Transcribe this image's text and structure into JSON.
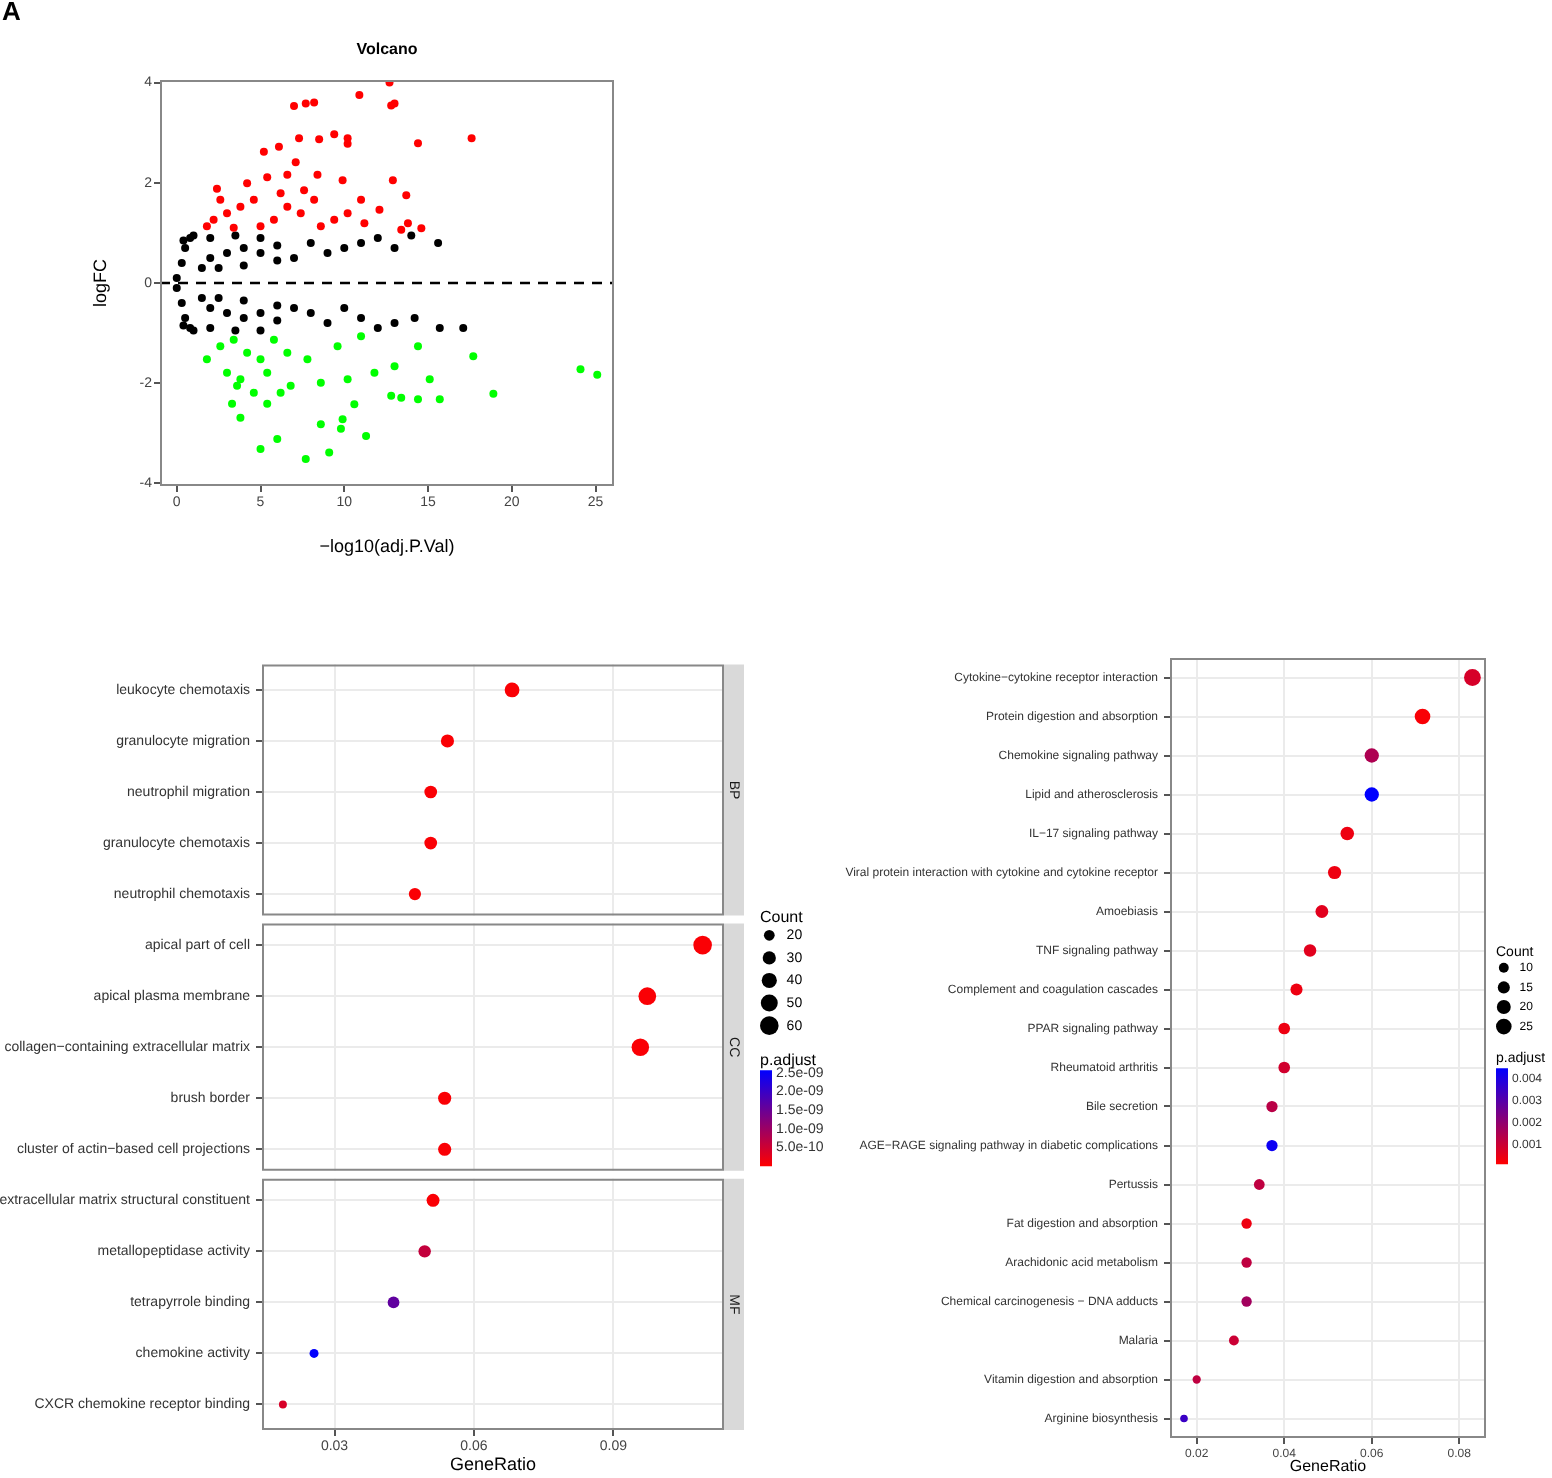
{
  "chart_data": [
    {
      "type": "scatter",
      "title": "Volcano",
      "xlabel": "−log10(adj.P.Val)",
      "ylabel": "logFC",
      "annotations": [
        "A"
      ],
      "xlim": [
        -1,
        26.1
      ],
      "ylim": [
        -4.05,
        4.05
      ],
      "xticks": [
        0,
        5,
        10,
        15,
        20,
        25
      ],
      "yticks": [
        -4,
        -2,
        0,
        2,
        4
      ],
      "grid": false,
      "marker": "circle",
      "ref_lines": [
        {
          "axis": "y",
          "value": 0,
          "color": "#000000",
          "line_style": "dashed"
        }
      ],
      "series": [
        {
          "color": "#ff0000",
          "x": [
            12.7,
            10.9,
            7.0,
            7.7,
            8.2,
            12.8,
            13.0,
            17.6,
            14.4,
            9.4,
            10.2,
            8.5,
            7.3,
            10.2,
            6.1,
            5.2,
            7.1,
            12.9,
            13.7,
            8.4,
            9.9,
            4.2,
            2.4,
            5.4,
            6.6,
            11.0,
            12.1,
            13.8,
            14.6,
            13.4,
            2.2,
            3.0,
            3.8,
            4.6,
            5.8,
            6.6,
            7.4,
            8.2,
            5.0,
            3.4,
            1.8,
            9.4,
            10.2,
            11.2,
            8.6,
            6.2,
            7.6,
            2.6
          ],
          "values": [
            4.0,
            3.75,
            3.53,
            3.58,
            3.6,
            3.54,
            3.58,
            2.89,
            2.79,
            2.97,
            2.89,
            2.87,
            2.89,
            2.78,
            2.72,
            2.62,
            2.41,
            2.05,
            1.75,
            2.16,
            2.05,
            1.99,
            1.88,
            2.11,
            2.16,
            1.66,
            1.46,
            1.19,
            1.09,
            1.06,
            1.26,
            1.39,
            1.52,
            1.66,
            1.26,
            1.52,
            1.39,
            1.66,
            1.13,
            1.1,
            1.13,
            1.26,
            1.39,
            1.19,
            1.13,
            1.79,
            1.85,
            1.66
          ]
        },
        {
          "color": "#000000",
          "x": [
            0,
            0,
            0.3,
            0.3,
            0.5,
            0.5,
            0.8,
            0.8,
            1,
            1,
            2,
            2,
            3,
            3,
            4,
            4,
            5,
            5,
            6,
            6,
            7,
            7,
            8,
            8,
            9,
            9,
            10,
            10,
            11,
            11,
            12,
            12,
            13,
            13,
            14,
            14.2,
            15.6,
            15.7,
            17.1,
            2,
            2,
            3.5,
            3.5,
            5,
            5,
            1.5,
            1.5,
            2.5,
            2.5,
            4,
            4,
            6,
            6,
            0.4,
            0.4
          ],
          "values": [
            0.1,
            -0.1,
            0.4,
            -0.4,
            0.7,
            -0.7,
            0.9,
            -0.9,
            0.95,
            -0.95,
            0.5,
            -0.5,
            0.6,
            -0.6,
            0.7,
            -0.7,
            0.6,
            -0.6,
            0.75,
            -0.75,
            0.5,
            -0.5,
            0.8,
            -0.6,
            0.6,
            -0.8,
            0.7,
            -0.5,
            0.8,
            -0.7,
            0.9,
            -0.9,
            0.7,
            -0.8,
            0.95,
            -0.7,
            0.8,
            -0.9,
            -0.9,
            0.9,
            -0.9,
            0.95,
            -0.95,
            0.9,
            -0.95,
            0.3,
            -0.3,
            0.3,
            -0.3,
            0.35,
            -0.35,
            0.45,
            -0.45,
            0.85,
            -0.85
          ]
        },
        {
          "color": "#00ff00",
          "x": [
            24.1,
            25.1,
            18.9,
            17.7,
            15.7,
            15.1,
            14.4,
            13.4,
            12.8,
            11.3,
            10.6,
            10.2,
            9.8,
            9.9,
            9.1,
            8.6,
            7.7,
            6.0,
            5.0,
            3.8,
            5.4,
            3.3,
            3.6,
            4.6,
            6.2,
            8.6,
            11.8,
            13.0,
            14.4,
            7.8,
            11.0,
            9.6,
            1.8,
            2.6,
            3.4,
            4.2,
            5.0,
            5.8,
            6.6,
            3.0,
            5.4,
            3.8,
            6.8
          ],
          "values": [
            -1.72,
            -1.83,
            -2.21,
            -1.46,
            -2.32,
            -1.92,
            -2.32,
            -2.29,
            -2.25,
            -3.05,
            -2.42,
            -1.92,
            -2.91,
            -2.72,
            -3.38,
            -2.82,
            -3.51,
            -3.11,
            -3.31,
            -2.69,
            -2.41,
            -2.41,
            -2.05,
            -2.19,
            -2.19,
            -1.99,
            -1.79,
            -1.66,
            -1.26,
            -1.52,
            -1.06,
            -1.26,
            -1.52,
            -1.26,
            -1.13,
            -1.39,
            -1.52,
            -1.13,
            -1.39,
            -1.79,
            -1.79,
            -1.92,
            -2.05
          ]
        }
      ]
    },
    {
      "type": "bubble",
      "orientation": "horizontal",
      "xlabel": "GeneRatio",
      "categories": [
        "leukocyte chemotaxis",
        "granulocyte migration",
        "neutrophil migration",
        "granulocyte chemotaxis",
        "neutrophil chemotaxis",
        "apical part of cell",
        "apical plasma membrane",
        "collagen−containing extracellular matrix",
        "brush border",
        "cluster of actin−based cell projections",
        "extracellular matrix structural constituent",
        "metallopeptidase activity",
        "tetrapyrrole binding",
        "chemokine activity",
        "CXCR chemokine receptor binding"
      ],
      "values": [
        0.0682,
        0.0543,
        0.0507,
        0.0507,
        0.0473,
        0.1092,
        0.0973,
        0.0958,
        0.0537,
        0.0537,
        0.0512,
        0.0494,
        0.0427,
        0.0256,
        0.0189
      ],
      "sizes": [
        38,
        30,
        28,
        28,
        26,
        60,
        54,
        53,
        30,
        30,
        29,
        27,
        24,
        14,
        11
      ],
      "cvalues": [
        5e-11,
        5e-11,
        5e-11,
        5e-11,
        5e-11,
        5e-11,
        5e-11,
        5e-11,
        5e-11,
        5e-11,
        5e-11,
        6e-10,
        1.6e-09,
        2.55e-09,
        4e-10
      ],
      "xlim": [
        0.0144,
        0.1138
      ],
      "xticks": [
        0.03,
        0.06,
        0.09
      ],
      "grid": true,
      "annotations": [
        "BP",
        "CC",
        "MF"
      ],
      "legend_title": "Count",
      "size_legend": [
        20,
        30,
        40,
        50,
        60
      ],
      "clabel": "p.adjust",
      "clim": [
        0,
        2.57e-09
      ],
      "cticks": [
        {
          "value": 5e-10,
          "label": "5.0e-10"
        },
        {
          "value": 1e-09,
          "label": "1.0e-09"
        },
        {
          "value": 1.5e-09,
          "label": "1.5e-09"
        },
        {
          "value": 2e-09,
          "label": "2.0e-09"
        },
        {
          "value": 2.5e-09,
          "label": "2.5e-09"
        }
      ]
    },
    {
      "type": "bubble",
      "orientation": "horizontal",
      "xlabel": "GeneRatio",
      "categories": [
        "Cytokine−cytokine receptor interaction",
        "Protein digestion and absorption",
        "Chemokine signaling pathway",
        "Lipid and atherosclerosis",
        "IL−17 signaling pathway",
        "Viral protein interaction with cytokine and cytokine receptor",
        "Amoebiasis",
        "TNF signaling pathway",
        "Complement and coagulation cascades",
        "PPAR signaling pathway",
        "Rheumatoid arthritis",
        "Bile secretion",
        "AGE−RAGE signaling pathway in diabetic complications",
        "Pertussis",
        "Fat digestion and absorption",
        "Arachidonic acid metabolism",
        "Chemical carcinogenesis − DNA adducts",
        "Malaria",
        "Vitamin digestion and absorption",
        "Arginine biosynthesis"
      ],
      "values": [
        0.083,
        0.0716,
        0.06,
        0.06,
        0.0544,
        0.0515,
        0.0486,
        0.0459,
        0.0428,
        0.04,
        0.04,
        0.0372,
        0.0372,
        0.0343,
        0.0314,
        0.0314,
        0.0314,
        0.0285,
        0.02,
        0.0171
      ],
      "sizes": [
        29,
        25,
        21,
        21,
        19,
        18,
        17,
        16,
        15,
        14,
        14,
        13,
        13,
        12,
        11,
        11,
        11,
        10,
        7,
        6
      ],
      "cvalues": [
        0.0008,
        0.0002,
        0.0015,
        0.0045,
        0.0004,
        0.0004,
        0.0006,
        0.0006,
        0.0004,
        0.0004,
        0.0009,
        0.0013,
        0.0043,
        0.0012,
        0.0004,
        0.0012,
        0.0017,
        0.001,
        0.0012,
        0.0035
      ],
      "xlim": [
        0.0139,
        0.0861
      ],
      "xticks": [
        0.02,
        0.04,
        0.06,
        0.08
      ],
      "grid": true,
      "legend_title": "Count",
      "size_legend": [
        10,
        15,
        20,
        25
      ],
      "clabel": "p.adjust",
      "clim": [
        0.0001,
        0.0045
      ],
      "cticks": [
        0.001,
        0.002,
        0.003,
        0.004
      ]
    }
  ]
}
